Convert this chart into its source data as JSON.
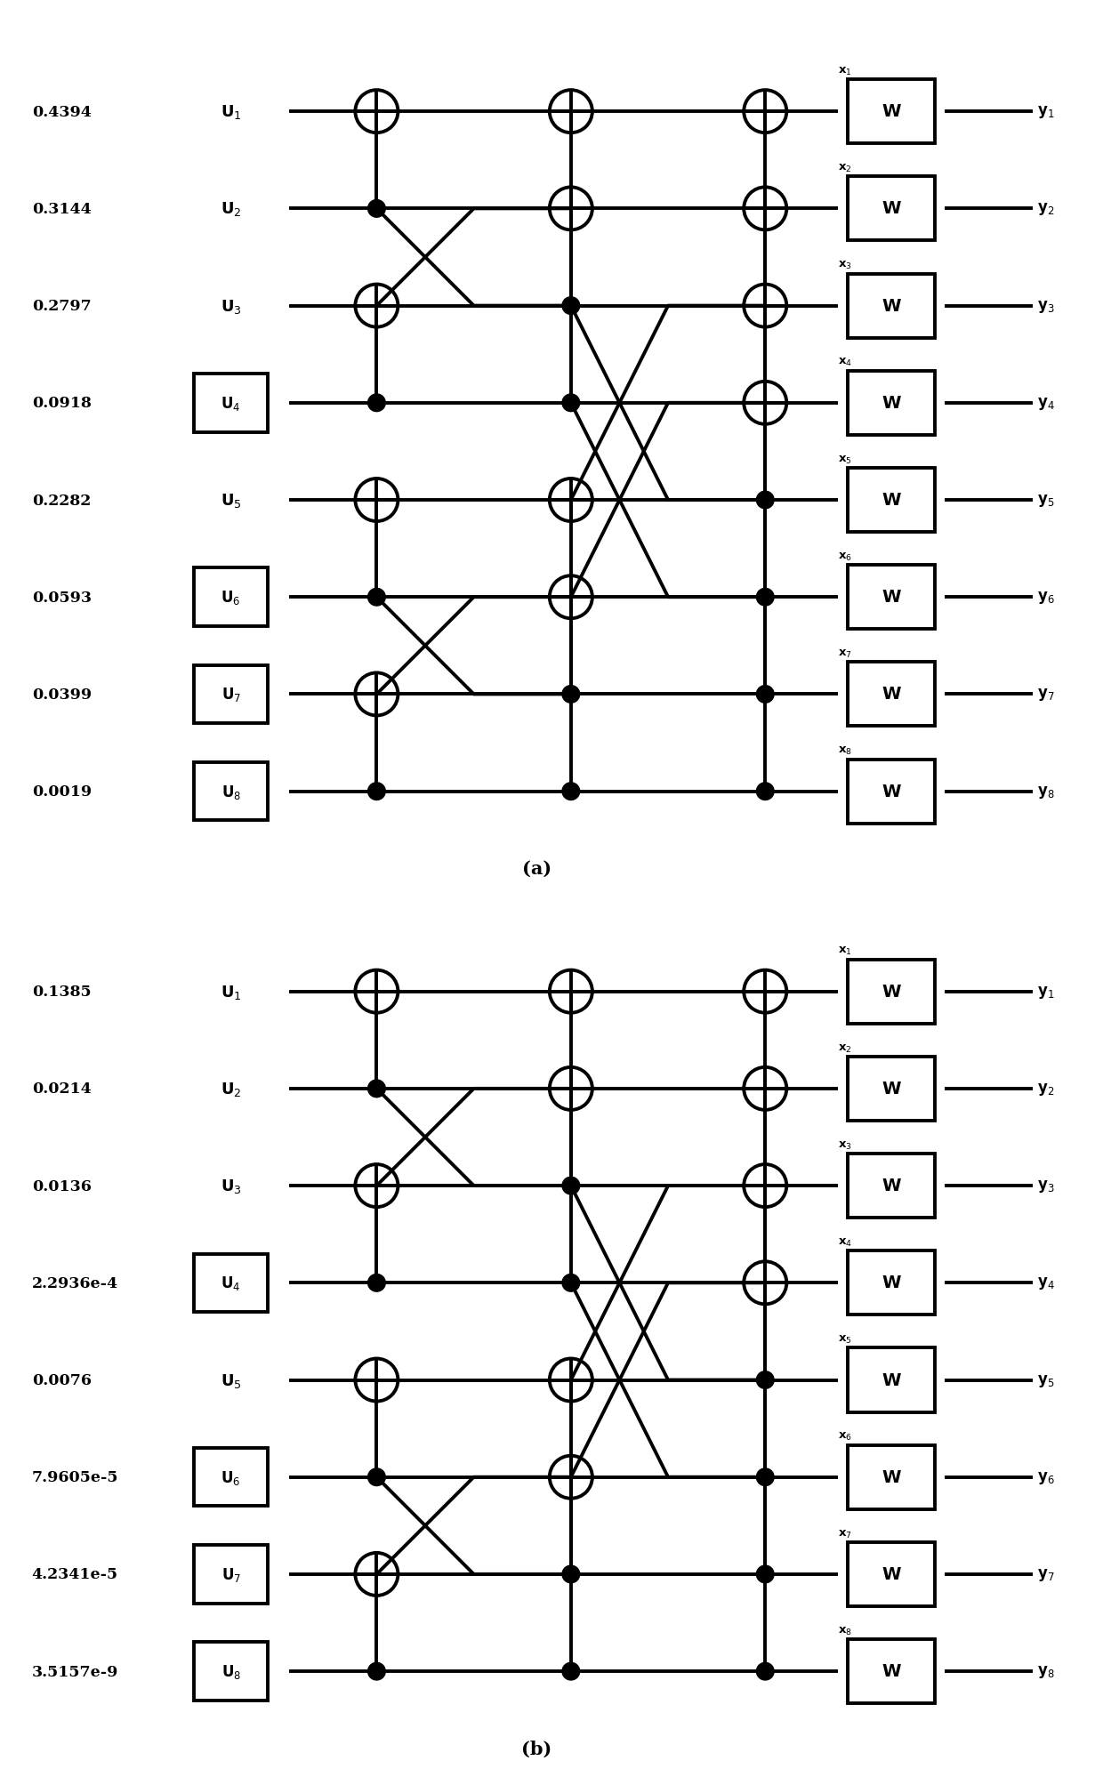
{
  "diagram_a": {
    "label": "(a)",
    "values": [
      "0.4394",
      "0.3144",
      "0.2797",
      "0.0918",
      "0.2282",
      "0.0593",
      "0.0399",
      "0.0019"
    ],
    "boxed_u": [
      3,
      5,
      6,
      7
    ]
  },
  "diagram_b": {
    "label": "(b)",
    "values": [
      "0.1385",
      "0.0214",
      "0.0136",
      "2.2936e-4",
      "0.0076",
      "7.9605e-5",
      "4.2341e-5",
      "3.5157e-9"
    ],
    "boxed_u": [
      3,
      5,
      6,
      7
    ]
  },
  "lw": 2.8
}
